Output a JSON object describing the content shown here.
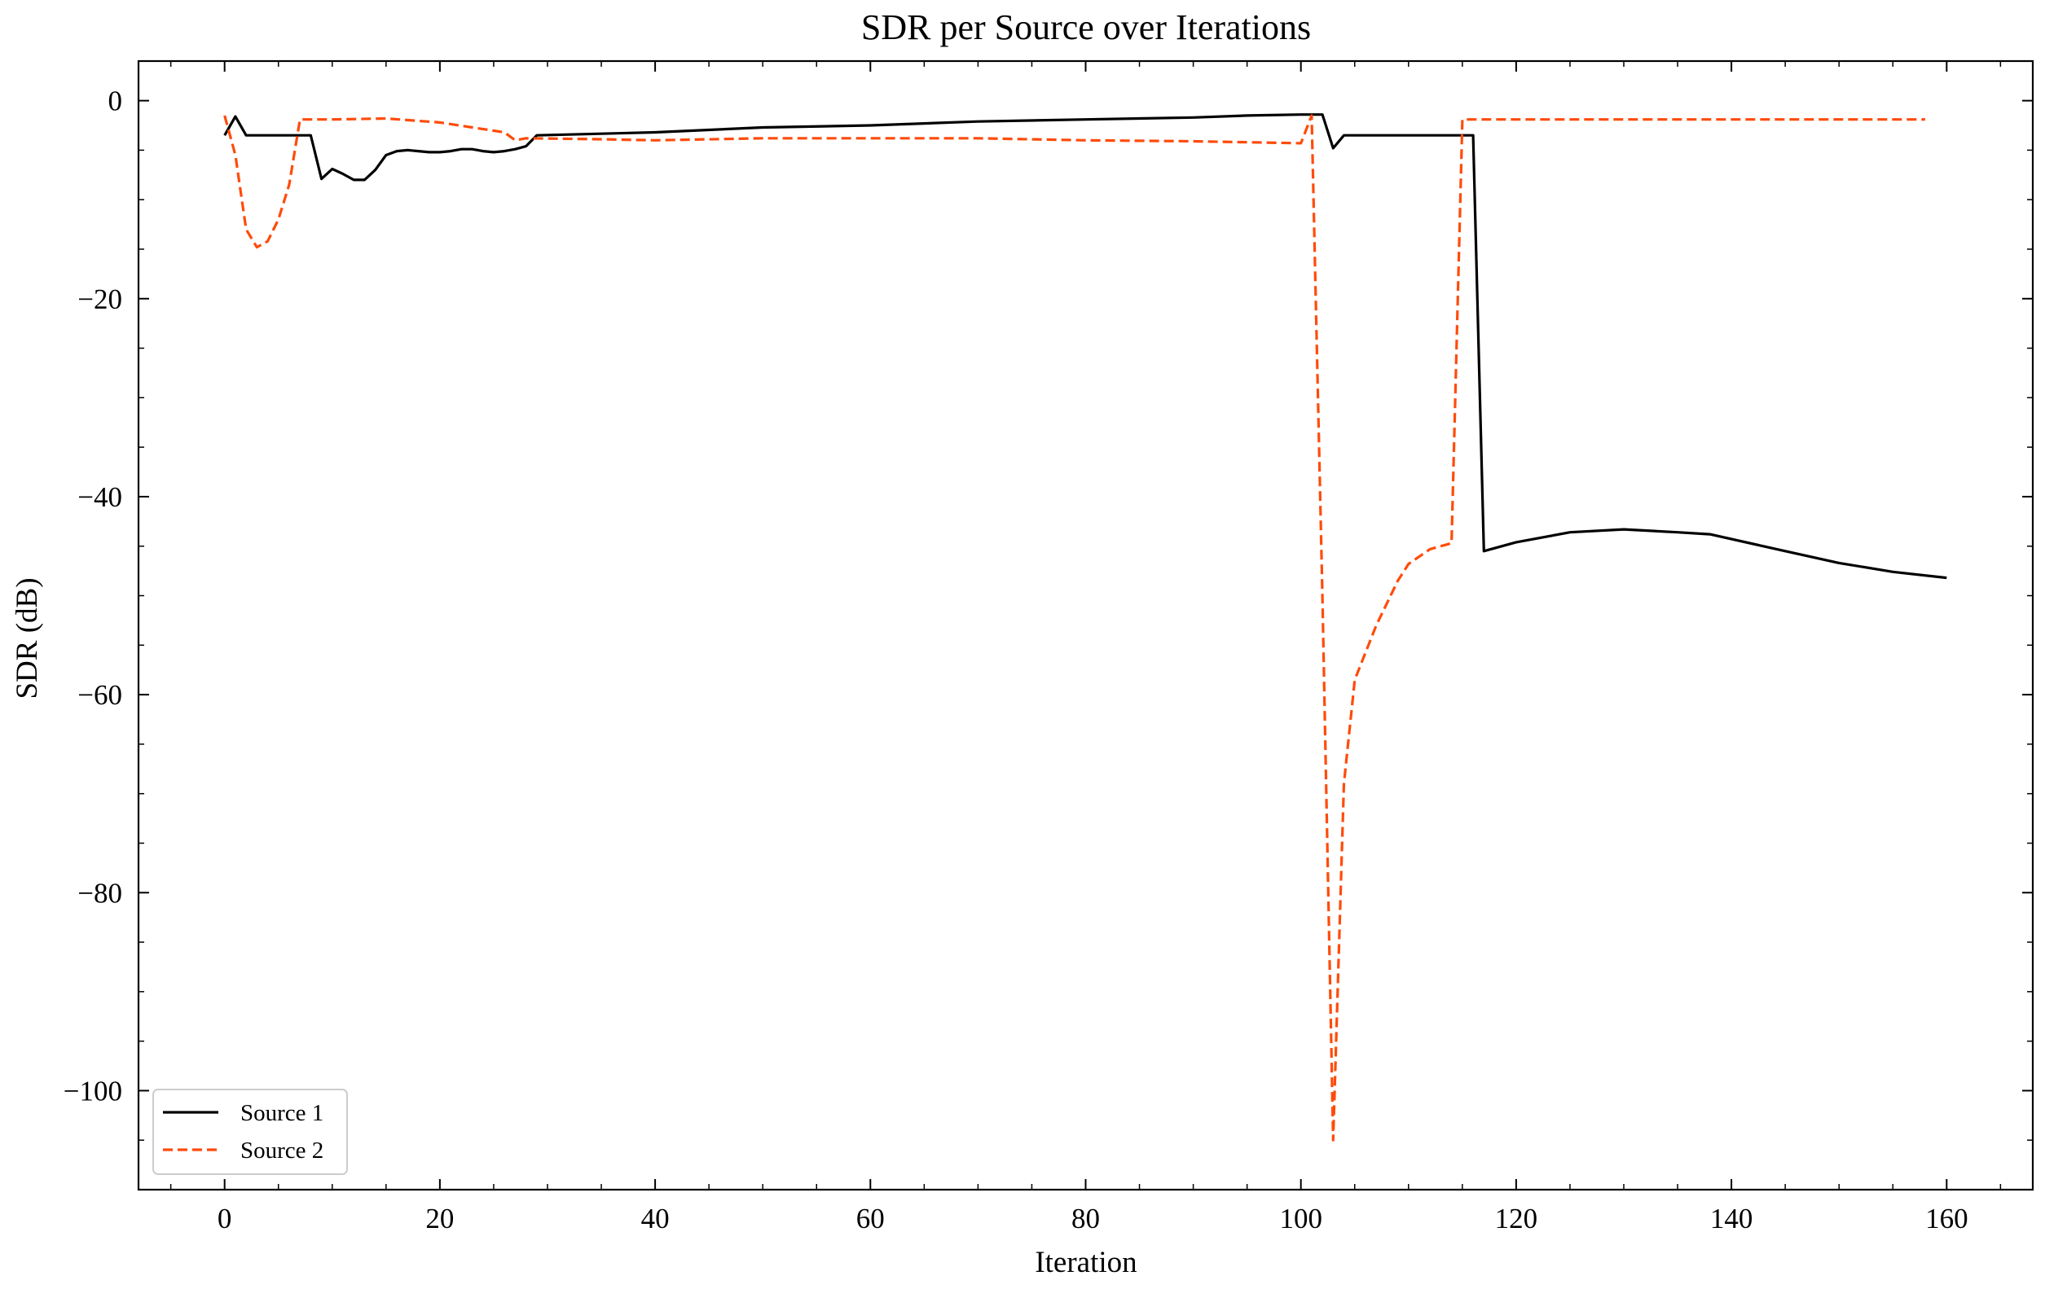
{
  "chart_data": {
    "type": "line",
    "title": "SDR per Source over Iterations",
    "xlabel": "Iteration",
    "ylabel": "SDR (dB)",
    "xlim": [
      -8,
      168
    ],
    "ylim": [
      -110,
      4
    ],
    "x_ticks": [
      0,
      20,
      40,
      60,
      80,
      100,
      120,
      140,
      160
    ],
    "y_ticks": [
      0,
      -20,
      -40,
      -60,
      -80,
      -100
    ],
    "x_tick_labels": [
      "0",
      "20",
      "40",
      "60",
      "80",
      "100",
      "120",
      "140",
      "160"
    ],
    "y_tick_labels": [
      "0",
      "−20",
      "−40",
      "−60",
      "−80",
      "−100"
    ],
    "grid": false,
    "legend_position": "lower-left",
    "series": [
      {
        "name": "Source 1",
        "color": "#000000",
        "dash": "solid",
        "points": [
          [
            0,
            -3.5
          ],
          [
            1,
            -1.6
          ],
          [
            2,
            -3.5
          ],
          [
            3,
            -3.5
          ],
          [
            4,
            -3.5
          ],
          [
            5,
            -3.5
          ],
          [
            6,
            -3.5
          ],
          [
            7,
            -3.5
          ],
          [
            8,
            -3.5
          ],
          [
            9,
            -7.9
          ],
          [
            10,
            -6.9
          ],
          [
            11,
            -7.4
          ],
          [
            12,
            -8.0
          ],
          [
            13,
            -8.0
          ],
          [
            14,
            -7.0
          ],
          [
            15,
            -5.5
          ],
          [
            16,
            -5.1
          ],
          [
            17,
            -5.0
          ],
          [
            18,
            -5.1
          ],
          [
            19,
            -5.2
          ],
          [
            20,
            -5.2
          ],
          [
            21,
            -5.1
          ],
          [
            22,
            -4.9
          ],
          [
            23,
            -4.9
          ],
          [
            24,
            -5.1
          ],
          [
            25,
            -5.2
          ],
          [
            26,
            -5.1
          ],
          [
            27,
            -4.9
          ],
          [
            28,
            -4.6
          ],
          [
            29,
            -3.5
          ],
          [
            40,
            -3.2
          ],
          [
            50,
            -2.7
          ],
          [
            60,
            -2.5
          ],
          [
            70,
            -2.1
          ],
          [
            80,
            -1.9
          ],
          [
            90,
            -1.7
          ],
          [
            95,
            -1.5
          ],
          [
            100,
            -1.4
          ],
          [
            102,
            -1.4
          ],
          [
            103,
            -4.8
          ],
          [
            104,
            -3.5
          ],
          [
            110,
            -3.5
          ],
          [
            116,
            -3.5
          ],
          [
            117,
            -45.5
          ],
          [
            120,
            -44.6
          ],
          [
            125,
            -43.6
          ],
          [
            130,
            -43.3
          ],
          [
            135,
            -43.6
          ],
          [
            138,
            -43.8
          ],
          [
            145,
            -45.5
          ],
          [
            150,
            -46.7
          ],
          [
            155,
            -47.6
          ],
          [
            160,
            -48.2
          ]
        ]
      },
      {
        "name": "Source 2",
        "color": "#ff4b0a",
        "dash": "dashed",
        "points": [
          [
            0,
            -1.5
          ],
          [
            1,
            -5.5
          ],
          [
            2,
            -13.0
          ],
          [
            3,
            -14.8
          ],
          [
            4,
            -14.2
          ],
          [
            5,
            -12.0
          ],
          [
            6,
            -8.5
          ],
          [
            7,
            -1.9
          ],
          [
            10,
            -1.9
          ],
          [
            15,
            -1.8
          ],
          [
            20,
            -2.2
          ],
          [
            26,
            -3.2
          ],
          [
            27,
            -4.0
          ],
          [
            28,
            -3.8
          ],
          [
            35,
            -3.9
          ],
          [
            40,
            -4.0
          ],
          [
            50,
            -3.8
          ],
          [
            60,
            -3.8
          ],
          [
            70,
            -3.8
          ],
          [
            80,
            -4.0
          ],
          [
            90,
            -4.1
          ],
          [
            100,
            -4.3
          ],
          [
            101,
            -1.5
          ],
          [
            102,
            -50.0
          ],
          [
            103,
            -105.0
          ],
          [
            104,
            -69.0
          ],
          [
            105,
            -58.5
          ],
          [
            107,
            -53.0
          ],
          [
            109,
            -48.5
          ],
          [
            110,
            -46.8
          ],
          [
            112,
            -45.3
          ],
          [
            114,
            -44.7
          ],
          [
            115,
            -1.9
          ],
          [
            120,
            -1.9
          ],
          [
            130,
            -1.9
          ],
          [
            140,
            -1.9
          ],
          [
            150,
            -1.9
          ],
          [
            158,
            -1.9
          ]
        ]
      }
    ]
  }
}
